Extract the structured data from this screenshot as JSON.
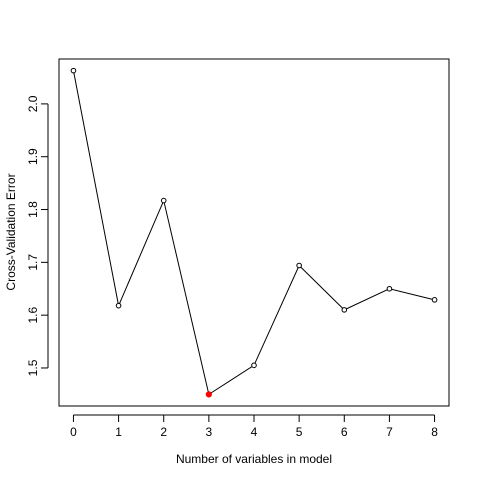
{
  "chart_data": {
    "type": "line",
    "title": "",
    "xlabel": "Number of variables in model",
    "ylabel": "Cross-Validation Error",
    "x": [
      0,
      1,
      2,
      3,
      4,
      5,
      6,
      7,
      8
    ],
    "series": [
      {
        "values": [
          2.063,
          1.618,
          1.817,
          1.45,
          1.505,
          1.694,
          1.61,
          1.65,
          1.629
        ]
      }
    ],
    "highlight": {
      "index": 3,
      "x": 3,
      "value": 1.45,
      "color": "#ff0000"
    },
    "xlim": [
      -0.32,
      8.32
    ],
    "ylim": [
      1.428,
      2.085
    ],
    "xticks": [
      0,
      1,
      2,
      3,
      4,
      5,
      6,
      7,
      8
    ],
    "yticks": [
      1.5,
      1.6,
      1.7,
      1.8,
      1.9,
      2.0
    ],
    "xtick_labels": [
      "0",
      "1",
      "2",
      "3",
      "4",
      "5",
      "6",
      "7",
      "8"
    ],
    "ytick_labels": [
      "1.5",
      "1.6",
      "1.7",
      "1.8",
      "1.9",
      "2.0"
    ],
    "grid": false,
    "legend": "none",
    "line_color": "#000000",
    "marker_style": "open-circle"
  }
}
